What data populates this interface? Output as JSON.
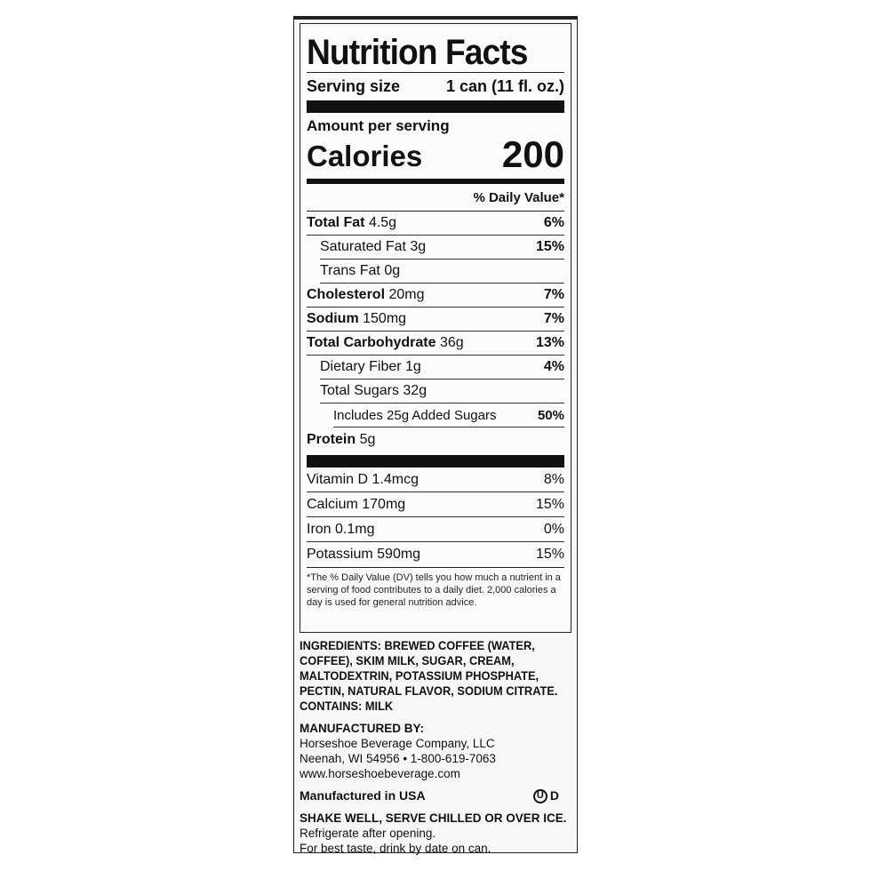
{
  "title": "Nutrition Facts",
  "serving": {
    "label": "Serving size",
    "value": "1 can (11 fl. oz.)"
  },
  "amount_per_serving": "Amount per serving",
  "calories": {
    "label": "Calories",
    "value": "200"
  },
  "dv_header": "% Daily Value*",
  "nutrients": [
    {
      "name": "Total Fat",
      "amount": "4.5g",
      "dv": "6%",
      "bold": true,
      "indent": 0
    },
    {
      "name": "Saturated Fat",
      "amount": "3g",
      "dv": "15%",
      "bold": false,
      "indent": 1
    },
    {
      "name": "Trans Fat",
      "amount": "0g",
      "dv": "",
      "bold": false,
      "indent": 1
    },
    {
      "name": "Cholesterol",
      "amount": "20mg",
      "dv": "7%",
      "bold": true,
      "indent": 0
    },
    {
      "name": "Sodium",
      "amount": "150mg",
      "dv": "7%",
      "bold": true,
      "indent": 0
    },
    {
      "name": "Total Carbohydrate",
      "amount": "36g",
      "dv": "13%",
      "bold": true,
      "indent": 0
    },
    {
      "name": "Dietary Fiber",
      "amount": "1g",
      "dv": "4%",
      "bold": false,
      "indent": 1
    },
    {
      "name": "Total Sugars",
      "amount": "32g",
      "dv": "",
      "bold": false,
      "indent": 1
    },
    {
      "name": "Includes 25g Added Sugars",
      "amount": "",
      "dv": "50%",
      "bold": false,
      "indent": 2
    },
    {
      "name": "Protein",
      "amount": "5g",
      "dv": "",
      "bold": true,
      "indent": 0
    }
  ],
  "vitamins": [
    {
      "name": "Vitamin D",
      "amount": "1.4mcg",
      "dv": "8%"
    },
    {
      "name": "Calcium",
      "amount": "170mg",
      "dv": "15%"
    },
    {
      "name": "Iron",
      "amount": "0.1mg",
      "dv": "0%"
    },
    {
      "name": "Potassium",
      "amount": "590mg",
      "dv": "15%"
    }
  ],
  "footnote": "*The % Daily Value (DV) tells you how much a nutrient in a serving of food contributes to a daily diet. 2,000 calories a day is used for general nutrition advice.",
  "ingredients": "INGREDIENTS: BREWED COFFEE (WATER, COFFEE), SKIM MILK, SUGAR, CREAM, MALTODEXTRIN, POTASSIUM PHOSPHATE, PECTIN, NATURAL FLAVOR, SODIUM CITRATE.",
  "contains": "CONTAINS: MILK",
  "manufacturer": {
    "heading": "MANUFACTURED BY:",
    "name": "Horseshoe Beverage Company, LLC",
    "address": "Neenah, WI 54956 • 1-800-619-7063",
    "website": "www.horseshoebeverage.com"
  },
  "made_in": "Manufactured in USA",
  "kosher": {
    "symbol": "U",
    "suffix": "D",
    "icon": "ou-kosher-dairy-symbol"
  },
  "instructions": {
    "bold": "SHAKE WELL, SERVE CHILLED OR OVER ICE.",
    "rest": " Refrigerate after opening.",
    "line3": "For best taste, drink by date on can."
  }
}
